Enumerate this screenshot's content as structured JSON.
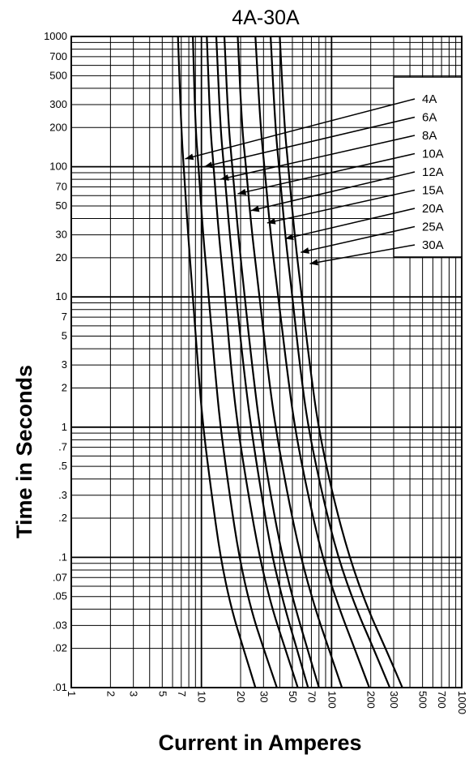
{
  "chart_data": {
    "type": "line",
    "title": "4A-30A",
    "xlabel": "Current in Amperes",
    "ylabel": "Time in Seconds",
    "xscale": "log",
    "yscale": "log",
    "xlim": [
      1,
      1000
    ],
    "ylim": [
      0.01,
      1000
    ],
    "grid": true,
    "legend_position": "top-right",
    "x_ticks": [
      {
        "value": 1,
        "label": "1"
      },
      {
        "value": 2,
        "label": "2"
      },
      {
        "value": 3,
        "label": "3"
      },
      {
        "value": 5,
        "label": "5"
      },
      {
        "value": 7,
        "label": "7"
      },
      {
        "value": 10,
        "label": "10"
      },
      {
        "value": 20,
        "label": "20"
      },
      {
        "value": 30,
        "label": "30"
      },
      {
        "value": 50,
        "label": "50"
      },
      {
        "value": 70,
        "label": "70"
      },
      {
        "value": 100,
        "label": "100"
      },
      {
        "value": 200,
        "label": "200"
      },
      {
        "value": 300,
        "label": "300"
      },
      {
        "value": 500,
        "label": "500"
      },
      {
        "value": 700,
        "label": "700"
      },
      {
        "value": 1000,
        "label": "1000"
      }
    ],
    "y_ticks": [
      {
        "value": 1000,
        "label": "1000"
      },
      {
        "value": 700,
        "label": "700"
      },
      {
        "value": 500,
        "label": "500"
      },
      {
        "value": 300,
        "label": "300"
      },
      {
        "value": 200,
        "label": "200"
      },
      {
        "value": 100,
        "label": "100"
      },
      {
        "value": 70,
        "label": "70"
      },
      {
        "value": 50,
        "label": "50"
      },
      {
        "value": 30,
        "label": "30"
      },
      {
        "value": 20,
        "label": "20"
      },
      {
        "value": 10,
        "label": "10"
      },
      {
        "value": 7,
        "label": "7"
      },
      {
        "value": 5,
        "label": "5"
      },
      {
        "value": 3,
        "label": "3"
      },
      {
        "value": 2,
        "label": "2"
      },
      {
        "value": 1,
        "label": "1"
      },
      {
        "value": 0.7,
        "label": ".7"
      },
      {
        "value": 0.5,
        "label": ".5"
      },
      {
        "value": 0.3,
        "label": ".3"
      },
      {
        "value": 0.2,
        "label": ".2"
      },
      {
        "value": 0.1,
        "label": ".1"
      },
      {
        "value": 0.07,
        "label": ".07"
      },
      {
        "value": 0.05,
        "label": ".05"
      },
      {
        "value": 0.03,
        "label": ".03"
      },
      {
        "value": 0.02,
        "label": ".02"
      },
      {
        "value": 0.01,
        "label": ".01"
      }
    ],
    "series": [
      {
        "name": "4A",
        "points": [
          [
            6.6,
            1000
          ],
          [
            7.0,
            200
          ],
          [
            7.3,
            100
          ],
          [
            7.9,
            30
          ],
          [
            8.6,
            10
          ],
          [
            9.4,
            3
          ],
          [
            10.3,
            1
          ],
          [
            12.0,
            0.3
          ],
          [
            14.0,
            0.1
          ],
          [
            17.0,
            0.04
          ],
          [
            21.0,
            0.02
          ],
          [
            26.0,
            0.01
          ]
        ],
        "arrow": [
          7.5,
          115
        ]
      },
      {
        "name": "6A",
        "points": [
          [
            8.6,
            1000
          ],
          [
            9.0,
            200
          ],
          [
            9.5,
            100
          ],
          [
            10.3,
            30
          ],
          [
            11.4,
            10
          ],
          [
            12.6,
            3
          ],
          [
            14.0,
            1
          ],
          [
            16.5,
            0.3
          ],
          [
            19.5,
            0.1
          ],
          [
            24.0,
            0.04
          ],
          [
            30.0,
            0.02
          ],
          [
            38.0,
            0.01
          ]
        ],
        "arrow": [
          10.5,
          100
        ]
      },
      {
        "name": "8A",
        "points": [
          [
            11.0,
            1000
          ],
          [
            11.7,
            200
          ],
          [
            12.4,
            100
          ],
          [
            13.6,
            30
          ],
          [
            15.2,
            10
          ],
          [
            16.8,
            3
          ],
          [
            19.0,
            1
          ],
          [
            23.0,
            0.3
          ],
          [
            28.0,
            0.1
          ],
          [
            35.0,
            0.04
          ],
          [
            44.0,
            0.02
          ],
          [
            55.0,
            0.01
          ]
        ],
        "arrow": [
          14.0,
          80
        ]
      },
      {
        "name": "10A",
        "points": [
          [
            13.0,
            1000
          ],
          [
            14.0,
            200
          ],
          [
            14.9,
            100
          ],
          [
            16.5,
            30
          ],
          [
            18.5,
            10
          ],
          [
            21.0,
            3
          ],
          [
            24.0,
            1
          ],
          [
            29.0,
            0.3
          ],
          [
            35.0,
            0.1
          ],
          [
            44.0,
            0.04
          ],
          [
            54.0,
            0.02
          ],
          [
            66.0,
            0.01
          ]
        ],
        "arrow": [
          19.0,
          62
        ]
      },
      {
        "name": "12A",
        "points": [
          [
            15.0,
            1000
          ],
          [
            16.2,
            200
          ],
          [
            17.3,
            100
          ],
          [
            19.2,
            30
          ],
          [
            21.5,
            10
          ],
          [
            24.5,
            3
          ],
          [
            28.0,
            1
          ],
          [
            34.0,
            0.3
          ],
          [
            42.0,
            0.1
          ],
          [
            53.0,
            0.04
          ],
          [
            65.0,
            0.02
          ],
          [
            80.0,
            0.01
          ]
        ],
        "arrow": [
          24.0,
          46
        ]
      },
      {
        "name": "15A",
        "points": [
          [
            19.0,
            1000
          ],
          [
            20.5,
            200
          ],
          [
            22.0,
            100
          ],
          [
            24.5,
            30
          ],
          [
            28.0,
            10
          ],
          [
            32.0,
            3
          ],
          [
            37.0,
            1
          ],
          [
            46.0,
            0.3
          ],
          [
            58.0,
            0.1
          ],
          [
            75.0,
            0.04
          ],
          [
            95.0,
            0.02
          ],
          [
            120.0,
            0.01
          ]
        ],
        "arrow": [
          32.0,
          37
        ]
      },
      {
        "name": "20A",
        "points": [
          [
            26.0,
            1000
          ],
          [
            28.5,
            200
          ],
          [
            30.5,
            100
          ],
          [
            34.0,
            30
          ],
          [
            39.0,
            10
          ],
          [
            45.0,
            3
          ],
          [
            52.0,
            1
          ],
          [
            66.0,
            0.3
          ],
          [
            85.0,
            0.1
          ],
          [
            115.0,
            0.04
          ],
          [
            150.0,
            0.02
          ],
          [
            195.0,
            0.01
          ]
        ],
        "arrow": [
          44.0,
          28
        ]
      },
      {
        "name": "25A",
        "points": [
          [
            34.0,
            1000
          ],
          [
            37.0,
            200
          ],
          [
            39.5,
            100
          ],
          [
            44.0,
            30
          ],
          [
            50.0,
            10
          ],
          [
            57.0,
            3
          ],
          [
            66.0,
            1
          ],
          [
            85.0,
            0.3
          ],
          [
            112.0,
            0.1
          ],
          [
            155.0,
            0.04
          ],
          [
            210.0,
            0.02
          ],
          [
            280.0,
            0.01
          ]
        ],
        "arrow": [
          58.0,
          22
        ]
      },
      {
        "name": "30A",
        "points": [
          [
            40.0,
            1000
          ],
          [
            43.5,
            200
          ],
          [
            46.5,
            100
          ],
          [
            52.0,
            30
          ],
          [
            59.0,
            10
          ],
          [
            68.0,
            3
          ],
          [
            79.0,
            1
          ],
          [
            102.0,
            0.3
          ],
          [
            137.0,
            0.1
          ],
          [
            190.0,
            0.04
          ],
          [
            260.0,
            0.02
          ],
          [
            350.0,
            0.01
          ]
        ],
        "arrow": [
          68.0,
          18
        ]
      }
    ]
  }
}
